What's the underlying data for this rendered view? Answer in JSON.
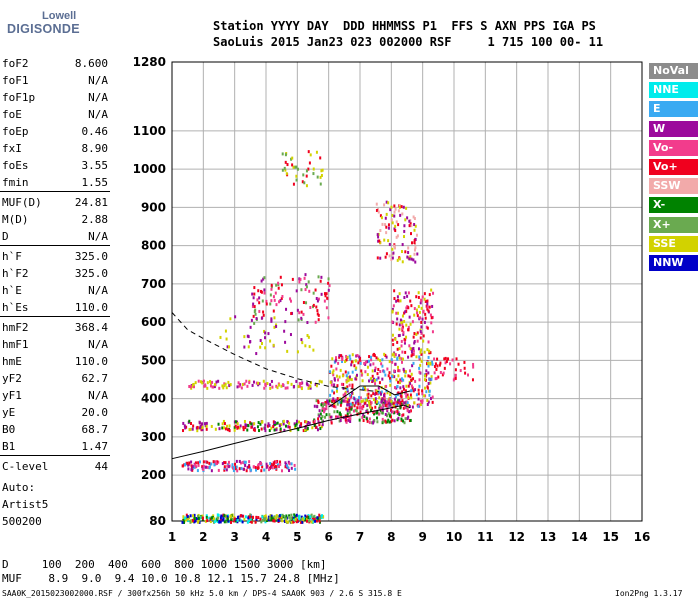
{
  "logo": {
    "line1": "Lowell",
    "line2": "DIGISONDE"
  },
  "header": {
    "line1": "Station YYYY DAY  DDD HHMMSS P1  FFS S AXN PPS IGA PS",
    "line2": "SaoLuis 2015 Jan23 023 002000 RSF     1 715 100 00- 11"
  },
  "params": [
    {
      "name": "foF2",
      "value": "8.600"
    },
    {
      "name": "foF1",
      "value": "N/A"
    },
    {
      "name": "foF1p",
      "value": "N/A"
    },
    {
      "name": "foE",
      "value": "N/A"
    },
    {
      "name": "foEp",
      "value": "0.46"
    },
    {
      "name": "fxI",
      "value": "8.90"
    },
    {
      "name": "foEs",
      "value": "3.55"
    },
    {
      "name": "fmin",
      "value": "1.55"
    },
    {
      "name": "MUF(D)",
      "value": "24.81"
    },
    {
      "name": "M(D)",
      "value": "2.88"
    },
    {
      "name": "D",
      "value": "N/A"
    },
    {
      "name": "h`F",
      "value": "325.0"
    },
    {
      "name": "h`F2",
      "value": "325.0"
    },
    {
      "name": "h`E",
      "value": "N/A"
    },
    {
      "name": "h`Es",
      "value": "110.0"
    },
    {
      "name": "hmF2",
      "value": "368.4"
    },
    {
      "name": "hmF1",
      "value": "N/A"
    },
    {
      "name": "hmE",
      "value": "110.0"
    },
    {
      "name": "yF2",
      "value": "62.7"
    },
    {
      "name": "yF1",
      "value": "N/A"
    },
    {
      "name": "yE",
      "value": "20.0"
    },
    {
      "name": "B0",
      "value": "68.7"
    },
    {
      "name": "B1",
      "value": "1.47"
    },
    {
      "name": "C-level",
      "value": "44"
    }
  ],
  "auto": {
    "line1": "Auto:",
    "line2": "Artist5",
    "line3": "500200"
  },
  "legend": [
    {
      "label": "NoVal",
      "color": "#8c8c8c"
    },
    {
      "label": "NNE",
      "color": "#00ecec"
    },
    {
      "label": "E",
      "color": "#3aaaf2"
    },
    {
      "label": "W",
      "color": "#9c0a9c"
    },
    {
      "label": "Vo-",
      "color": "#f23c8c"
    },
    {
      "label": "Vo+",
      "color": "#f0001e"
    },
    {
      "label": "SSW",
      "color": "#f2aaaa"
    },
    {
      "label": "X-",
      "color": "#008200"
    },
    {
      "label": "X+",
      "color": "#6aaa50"
    },
    {
      "label": "SSE",
      "color": "#d2d200"
    },
    {
      "label": "NNW",
      "color": "#0000c8"
    }
  ],
  "footer": {
    "d_line": "D     100  200  400  600  800 1000 1500 3000 [km]",
    "muf_line": "MUF    8.9  9.0  9.4 10.0 10.8 12.1 15.7 24.8 [MHz]",
    "file_line": "SAA0K_2015023002000.RSF / 300fx256h 50 kHz 5.0 km / DPS-4 SAA0K 903 / 2.6 S 315.8 E",
    "version": "Ion2Png 1.3.17"
  },
  "chart_data": {
    "type": "scatter",
    "xlim": [
      1,
      16
    ],
    "ylim": [
      80,
      1280
    ],
    "x_ticks": [
      1,
      2,
      3,
      4,
      5,
      6,
      7,
      8,
      9,
      10,
      11,
      12,
      13,
      14,
      15,
      16
    ],
    "y_ticks": [
      80,
      200,
      300,
      400,
      500,
      600,
      700,
      800,
      900,
      1000,
      1100,
      1280
    ],
    "grid": true,
    "legend_position": "right",
    "traces": [
      {
        "name": "profile",
        "style": "solid",
        "points": [
          [
            1.0,
            243
          ],
          [
            2.0,
            262
          ],
          [
            3.0,
            283
          ],
          [
            4.0,
            303
          ],
          [
            5.0,
            322
          ],
          [
            6.0,
            343
          ],
          [
            7.0,
            360
          ],
          [
            8.0,
            376
          ],
          [
            8.4,
            383
          ],
          [
            8.6,
            376
          ]
        ]
      },
      {
        "name": "trace",
        "style": "solid",
        "points": [
          [
            6.0,
            378
          ],
          [
            6.5,
            405
          ],
          [
            7.0,
            433
          ],
          [
            7.6,
            433
          ],
          [
            8.1,
            410
          ],
          [
            8.6,
            420
          ]
        ]
      },
      {
        "name": "model",
        "style": "dashed",
        "points": [
          [
            1.0,
            625
          ],
          [
            1.5,
            580
          ],
          [
            2.0,
            557
          ],
          [
            3.0,
            515
          ],
          [
            4.0,
            478
          ],
          [
            5.0,
            452
          ],
          [
            6.0,
            432
          ],
          [
            7.0,
            423
          ],
          [
            7.6,
            418
          ]
        ]
      }
    ],
    "echo_groups": [
      {
        "x": [
          1.3,
          5.8
        ],
        "y": [
          80,
          100
        ],
        "colors": [
          "#0000c8",
          "#d2d200",
          "#008200",
          "#f0001e",
          "#00ecec",
          "#6aaa50"
        ],
        "n": 320
      },
      {
        "x": [
          1.3,
          4.9
        ],
        "y": [
          215,
          240
        ],
        "colors": [
          "#f0001e",
          "#9c0a9c",
          "#f23c8c",
          "#3aaaf2"
        ],
        "n": 160
      },
      {
        "x": [
          1.3,
          5.8
        ],
        "y": [
          320,
          345
        ],
        "colors": [
          "#f0001e",
          "#9c0a9c",
          "#008200",
          "#d2d200"
        ],
        "n": 160
      },
      {
        "x": [
          5.5,
          8.6
        ],
        "y": [
          340,
          400
        ],
        "colors": [
          "#f0001e",
          "#f23c8c",
          "#008200",
          "#6aaa50",
          "#9c0a9c"
        ],
        "n": 260
      },
      {
        "x": [
          6.0,
          9.3
        ],
        "y": [
          380,
          520
        ],
        "colors": [
          "#f0001e",
          "#f23c8c",
          "#9c0a9c",
          "#3aaaf2",
          "#d2d200"
        ],
        "n": 420
      },
      {
        "x": [
          8.0,
          9.3
        ],
        "y": [
          520,
          690
        ],
        "colors": [
          "#f0001e",
          "#d2d200",
          "#9c0a9c",
          "#f23c8c"
        ],
        "n": 150
      },
      {
        "x": [
          7.5,
          8.8
        ],
        "y": [
          760,
          920
        ],
        "colors": [
          "#f0001e",
          "#d2d200",
          "#f2aaaa",
          "#9c0a9c"
        ],
        "n": 110
      },
      {
        "x": [
          1.5,
          5.8
        ],
        "y": [
          430,
          450
        ],
        "colors": [
          "#9c0a9c",
          "#f23c8c",
          "#d2d200"
        ],
        "n": 100
      },
      {
        "x": [
          3.5,
          6.0
        ],
        "y": [
          600,
          730
        ],
        "colors": [
          "#f0001e",
          "#9c0a9c",
          "#6aaa50",
          "#f23c8c"
        ],
        "n": 110
      },
      {
        "x": [
          4.5,
          5.8
        ],
        "y": [
          960,
          1050
        ],
        "colors": [
          "#f0001e",
          "#6aaa50",
          "#d2d200"
        ],
        "n": 40
      },
      {
        "x": [
          9.3,
          10.6
        ],
        "y": [
          450,
          510
        ],
        "colors": [
          "#f0001e",
          "#f23c8c"
        ],
        "n": 40
      },
      {
        "x": [
          2.5,
          5.5
        ],
        "y": [
          520,
          620
        ],
        "colors": [
          "#d2d200",
          "#9c0a9c"
        ],
        "n": 50
      }
    ]
  }
}
